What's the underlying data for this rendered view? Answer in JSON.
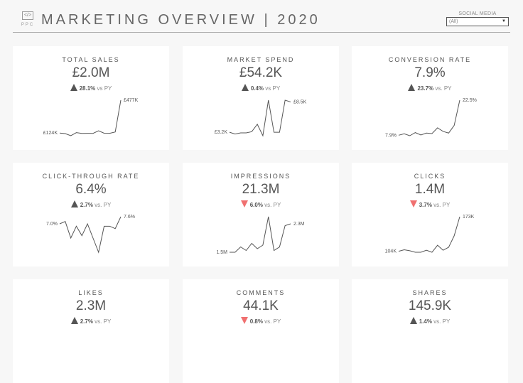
{
  "header": {
    "logo_text": "PPC",
    "logo_icon": "code-monitor-icon",
    "title": "MARKETING OVERVIEW | 2020",
    "filter": {
      "label": "SOCIAL MEDIA",
      "value": "(All)"
    }
  },
  "colors": {
    "up": "#555555",
    "down": "#f07070",
    "line": "#555555"
  },
  "cards": [
    {
      "title": "TOTAL SALES",
      "value": "£2.0M",
      "direction": "up",
      "change": "28.1%",
      "vs": "vs PY",
      "start_label": "£124K",
      "end_label": "£477K",
      "series": [
        124,
        118,
        95,
        128,
        120,
        121,
        120,
        148,
        122,
        121,
        135,
        477
      ]
    },
    {
      "title": "MARKET SPEND",
      "value": "£54.2K",
      "direction": "up",
      "change": "0.4%",
      "vs": "vs PY",
      "start_label": "£3.2K",
      "end_label": "£8.5K",
      "series": [
        3.2,
        2.9,
        3.1,
        3.1,
        3.3,
        4.6,
        2.6,
        8.8,
        3.2,
        3.2,
        8.8,
        8.5
      ]
    },
    {
      "title": "CONVERSION RATE",
      "value": "7.9%",
      "direction": "up",
      "change": "23.7%",
      "vs": "vs. PY",
      "start_label": "7.9%",
      "end_label": "22.5%",
      "series": [
        7.9,
        8.5,
        7.7,
        9,
        8,
        8.8,
        8.6,
        11,
        9.5,
        8.8,
        12,
        22.5
      ]
    },
    {
      "title": "CLICK-THROUGH RATE",
      "value": "6.4%",
      "direction": "up",
      "change": "2.7%",
      "vs": "vs. PY",
      "start_label": "7.0%",
      "end_label": "7.6%",
      "series": [
        7.0,
        7.2,
        5.8,
        6.8,
        6.0,
        7.0,
        5.8,
        4.6,
        6.8,
        6.8,
        6.6,
        7.6
      ]
    },
    {
      "title": "IMPRESSIONS",
      "value": "21.3M",
      "direction": "down",
      "change": "6.0%",
      "vs": "vs. PY",
      "start_label": "1.5M",
      "end_label": "2.3M",
      "series": [
        1.5,
        1.5,
        1.65,
        1.55,
        1.75,
        1.6,
        1.7,
        2.5,
        1.55,
        1.65,
        2.25,
        2.3
      ]
    },
    {
      "title": "CLICKS",
      "value": "1.4M",
      "direction": "down",
      "change": "3.7%",
      "vs": "vs. PY",
      "start_label": "104K",
      "end_label": "173K",
      "series": [
        104,
        107,
        105,
        102,
        102,
        106,
        102,
        116,
        106,
        112,
        135,
        173
      ]
    },
    {
      "title": "LIKES",
      "value": "2.3M",
      "direction": "up",
      "change": "2.7%",
      "vs": "vs. PY"
    },
    {
      "title": "COMMENTS",
      "value": "44.1K",
      "direction": "down",
      "change": "0.8%",
      "vs": "vs. PY"
    },
    {
      "title": "SHARES",
      "value": "145.9K",
      "direction": "up",
      "change": "1.4%",
      "vs": "vs. PY"
    }
  ]
}
